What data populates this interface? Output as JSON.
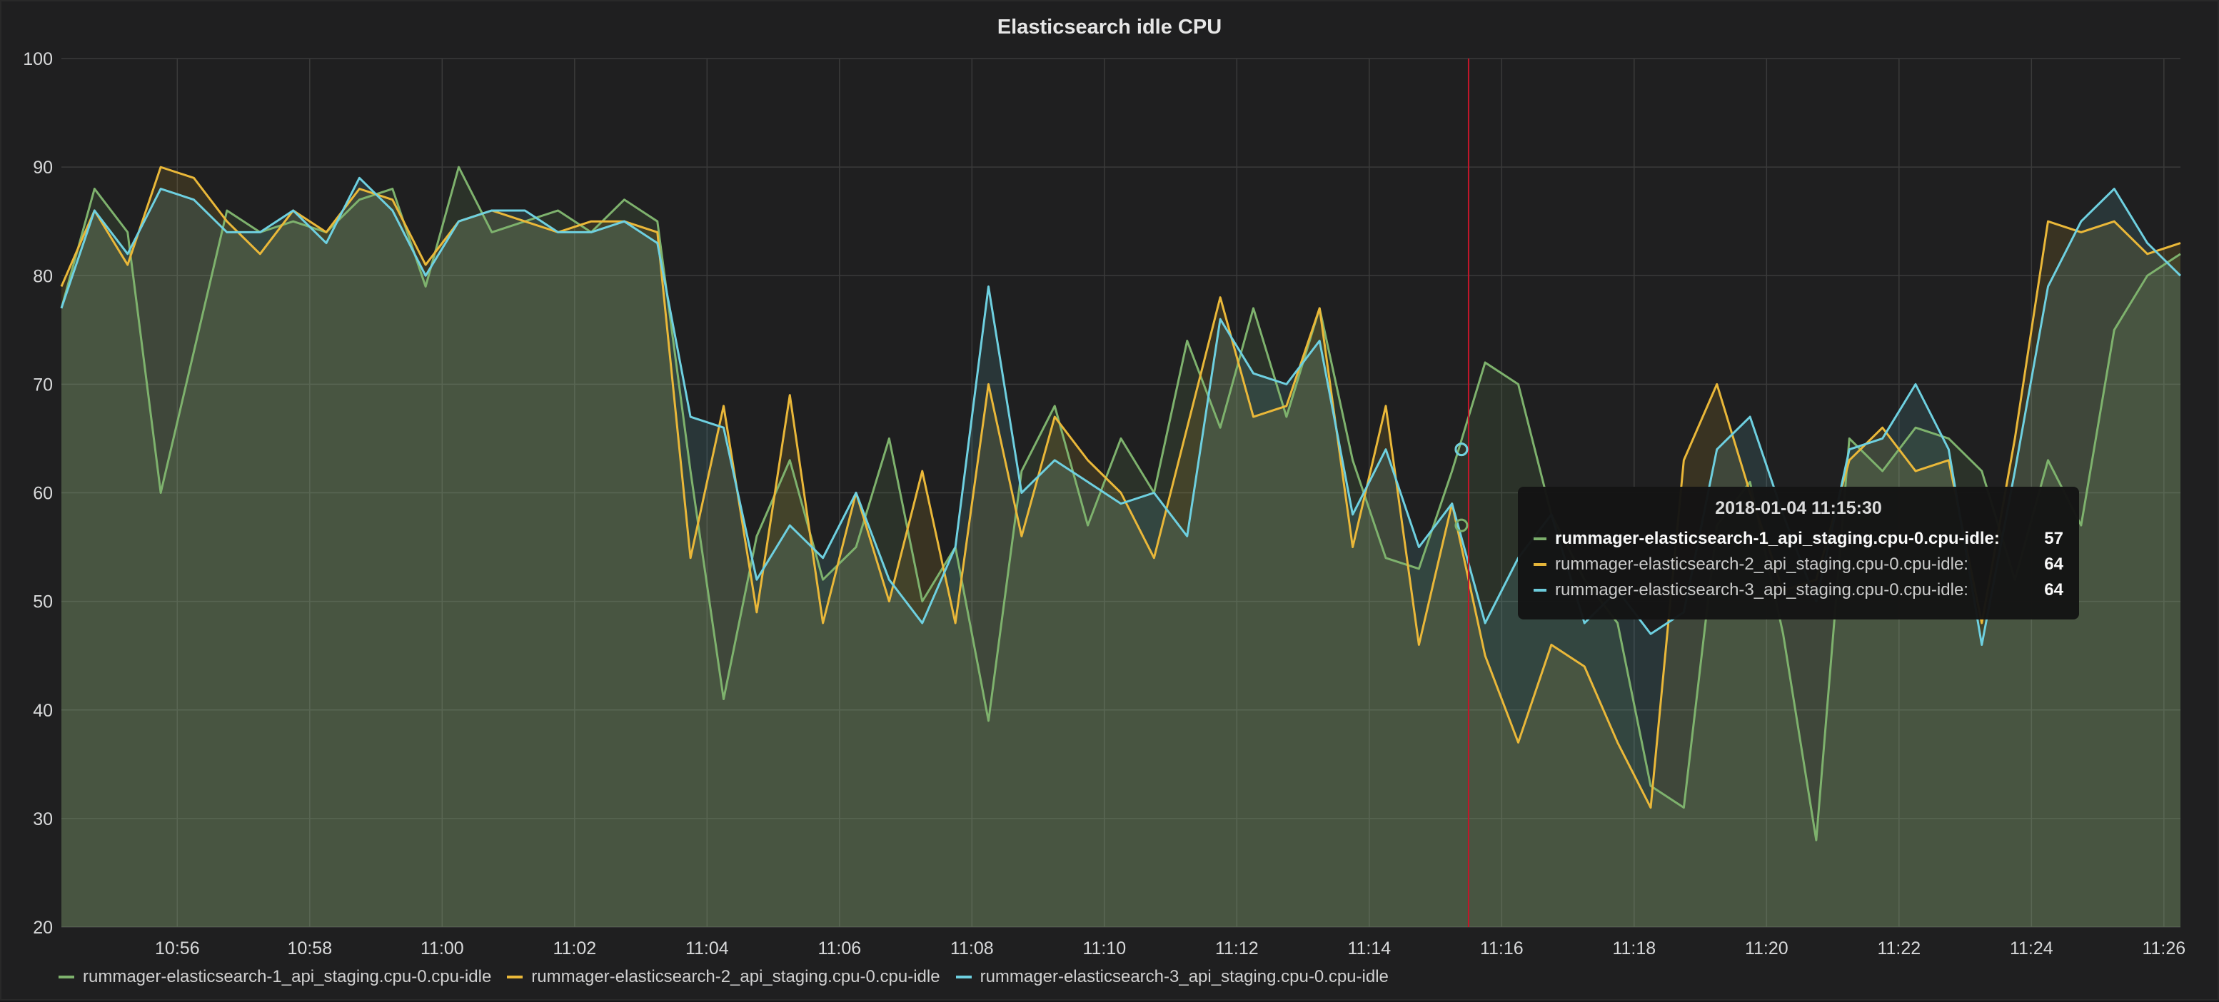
{
  "panel": {
    "title": "Elasticsearch idle CPU"
  },
  "chart_data": {
    "type": "area",
    "title": "Elasticsearch idle CPU",
    "ylim": [
      20,
      100
    ],
    "y_ticks": [
      "20",
      "30",
      "40",
      "50",
      "60",
      "70",
      "80",
      "90",
      "100"
    ],
    "x_range": [
      "10:54:15",
      "11:26:15"
    ],
    "x_ticks": [
      "10:56",
      "10:58",
      "11:00",
      "11:02",
      "11:04",
      "11:06",
      "11:08",
      "11:10",
      "11:12",
      "11:14",
      "11:16",
      "11:18",
      "11:20",
      "11:22",
      "11:24",
      "11:26"
    ],
    "grid": true,
    "legend_position": "bottom",
    "x": [
      "10:54:15",
      "10:54:45",
      "10:55:15",
      "10:55:45",
      "10:56:15",
      "10:56:45",
      "10:57:15",
      "10:57:45",
      "10:58:15",
      "10:58:45",
      "10:59:15",
      "10:59:45",
      "11:00:15",
      "11:00:45",
      "11:01:15",
      "11:01:45",
      "11:02:15",
      "11:02:45",
      "11:03:15",
      "11:03:45",
      "11:04:15",
      "11:04:45",
      "11:05:15",
      "11:05:45",
      "11:06:15",
      "11:06:45",
      "11:07:15",
      "11:07:45",
      "11:08:15",
      "11:08:45",
      "11:09:15",
      "11:09:45",
      "11:10:15",
      "11:10:45",
      "11:11:15",
      "11:11:45",
      "11:12:15",
      "11:12:45",
      "11:13:15",
      "11:13:45",
      "11:14:15",
      "11:14:45",
      "11:15:15",
      "11:15:45",
      "11:16:15",
      "11:16:45",
      "11:17:15",
      "11:17:45",
      "11:18:15",
      "11:18:45",
      "11:19:15",
      "11:19:45",
      "11:20:15",
      "11:20:45",
      "11:21:15",
      "11:21:45",
      "11:22:15",
      "11:22:45",
      "11:23:15",
      "11:23:45",
      "11:24:15",
      "11:24:45",
      "11:25:15",
      "11:25:45",
      "11:26:15"
    ],
    "series": [
      {
        "name": "rummager-elasticsearch-1_api_staging.cpu-0.cpu-idle",
        "color": "#7eb26d",
        "values": [
          77,
          88,
          84,
          60,
          73,
          86,
          84,
          85,
          84,
          87,
          88,
          79,
          90,
          84,
          85,
          86,
          84,
          87,
          85,
          62,
          41,
          56,
          63,
          52,
          55,
          65,
          50,
          55,
          39,
          62,
          68,
          57,
          65,
          60,
          74,
          66,
          77,
          67,
          77,
          63,
          54,
          53,
          62,
          72,
          70,
          58,
          52,
          48,
          33,
          31,
          57,
          61,
          47,
          28,
          65,
          62,
          66,
          65,
          62,
          52,
          63,
          57,
          75,
          80,
          82
        ]
      },
      {
        "name": "rummager-elasticsearch-2_api_staging.cpu-0.cpu-idle",
        "color": "#eab839",
        "values": [
          79,
          86,
          81,
          90,
          89,
          85,
          82,
          86,
          84,
          88,
          87,
          81,
          85,
          86,
          85,
          84,
          85,
          85,
          84,
          54,
          68,
          49,
          69,
          48,
          60,
          50,
          62,
          48,
          70,
          56,
          67,
          63,
          60,
          54,
          66,
          78,
          67,
          68,
          77,
          55,
          68,
          46,
          59,
          45,
          37,
          46,
          44,
          37,
          31,
          63,
          70,
          60,
          51,
          52,
          63,
          66,
          62,
          63,
          48,
          65,
          85,
          84,
          85,
          82,
          83
        ]
      },
      {
        "name": "rummager-elasticsearch-3_api_staging.cpu-0.cpu-idle",
        "color": "#6ed0e0",
        "values": [
          77,
          86,
          82,
          88,
          87,
          84,
          84,
          86,
          83,
          89,
          86,
          80,
          85,
          86,
          86,
          84,
          84,
          85,
          83,
          67,
          66,
          52,
          57,
          54,
          60,
          52,
          48,
          55,
          79,
          60,
          63,
          61,
          59,
          60,
          56,
          76,
          71,
          70,
          74,
          58,
          64,
          55,
          59,
          48,
          54,
          58,
          48,
          51,
          47,
          49,
          64,
          67,
          58,
          50,
          64,
          65,
          70,
          64,
          46,
          62,
          79,
          85,
          88,
          83,
          80
        ]
      }
    ],
    "tooltip": {
      "time": "2018-01-04 11:15:30",
      "rows": [
        {
          "label": "rummager-elasticsearch-1_api_staging.cpu-0.cpu-idle:",
          "value": "57"
        },
        {
          "label": "rummager-elasticsearch-2_api_staging.cpu-0.cpu-idle:",
          "value": "64"
        },
        {
          "label": "rummager-elasticsearch-3_api_staging.cpu-0.cpu-idle:",
          "value": "64"
        }
      ]
    },
    "cursor_time": "11:15:30"
  },
  "legend": {
    "items": [
      {
        "label": "rummager-elasticsearch-1_api_staging.cpu-0.cpu-idle",
        "color": "#7eb26d"
      },
      {
        "label": "rummager-elasticsearch-2_api_staging.cpu-0.cpu-idle",
        "color": "#eab839"
      },
      {
        "label": "rummager-elasticsearch-3_api_staging.cpu-0.cpu-idle",
        "color": "#6ed0e0"
      }
    ]
  }
}
